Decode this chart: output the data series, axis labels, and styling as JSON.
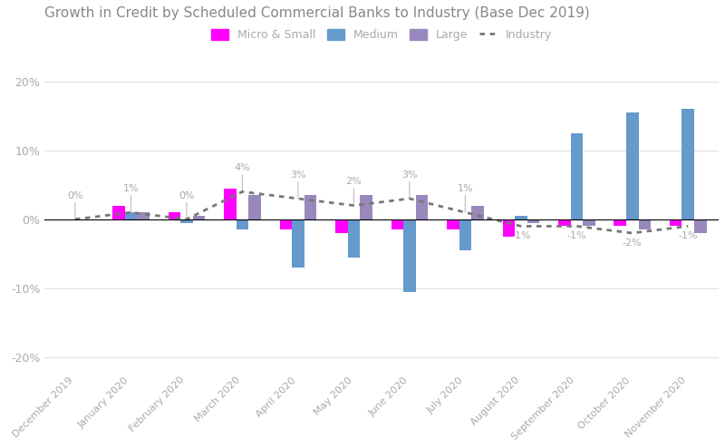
{
  "title": "Growth in Credit by Scheduled Commercial Banks to Industry (Base Dec 2019)",
  "categories": [
    "December 2019",
    "January 2020",
    "February 2020",
    "March 2020",
    "April 2020",
    "May 2020",
    "June 2020",
    "July 2020",
    "August 2020",
    "September 2020",
    "October 2020",
    "November 2020"
  ],
  "micro_small": [
    0.0,
    2.0,
    1.0,
    4.5,
    -1.5,
    -2.0,
    -1.5,
    -1.5,
    -2.5,
    -1.0,
    -1.0,
    -1.0
  ],
  "medium": [
    0.0,
    1.0,
    -0.5,
    -1.5,
    -7.0,
    -5.5,
    -10.5,
    -4.5,
    0.5,
    12.5,
    15.5,
    16.0
  ],
  "large": [
    0.0,
    1.0,
    0.5,
    3.5,
    3.5,
    3.5,
    3.5,
    2.0,
    -0.5,
    -1.0,
    -1.5,
    -2.0
  ],
  "industry": [
    0.0,
    1.0,
    0.0,
    4.0,
    3.0,
    2.0,
    3.0,
    1.0,
    -1.0,
    -1.0,
    -2.0,
    -1.0
  ],
  "industry_labels": [
    "0%",
    "1%",
    "0%",
    "4%",
    "3%",
    "2%",
    "3%",
    "1%",
    "-1%",
    "-1%",
    "-2%",
    "-1%"
  ],
  "industry_label_show_line": [
    true,
    true,
    true,
    true,
    true,
    true,
    true,
    true,
    false,
    false,
    false,
    false
  ],
  "color_micro_small": "#ff00ff",
  "color_medium": "#6699cc",
  "color_large": "#9988bb",
  "color_industry_line": "#777777",
  "color_title": "#888888",
  "color_label": "#aaaaaa",
  "color_annotation_line": "#bbbbbb",
  "ylim": [
    -22,
    22
  ],
  "yticks": [
    -20,
    -10,
    0,
    10,
    20
  ],
  "background_color": "#ffffff",
  "bar_width": 0.22
}
